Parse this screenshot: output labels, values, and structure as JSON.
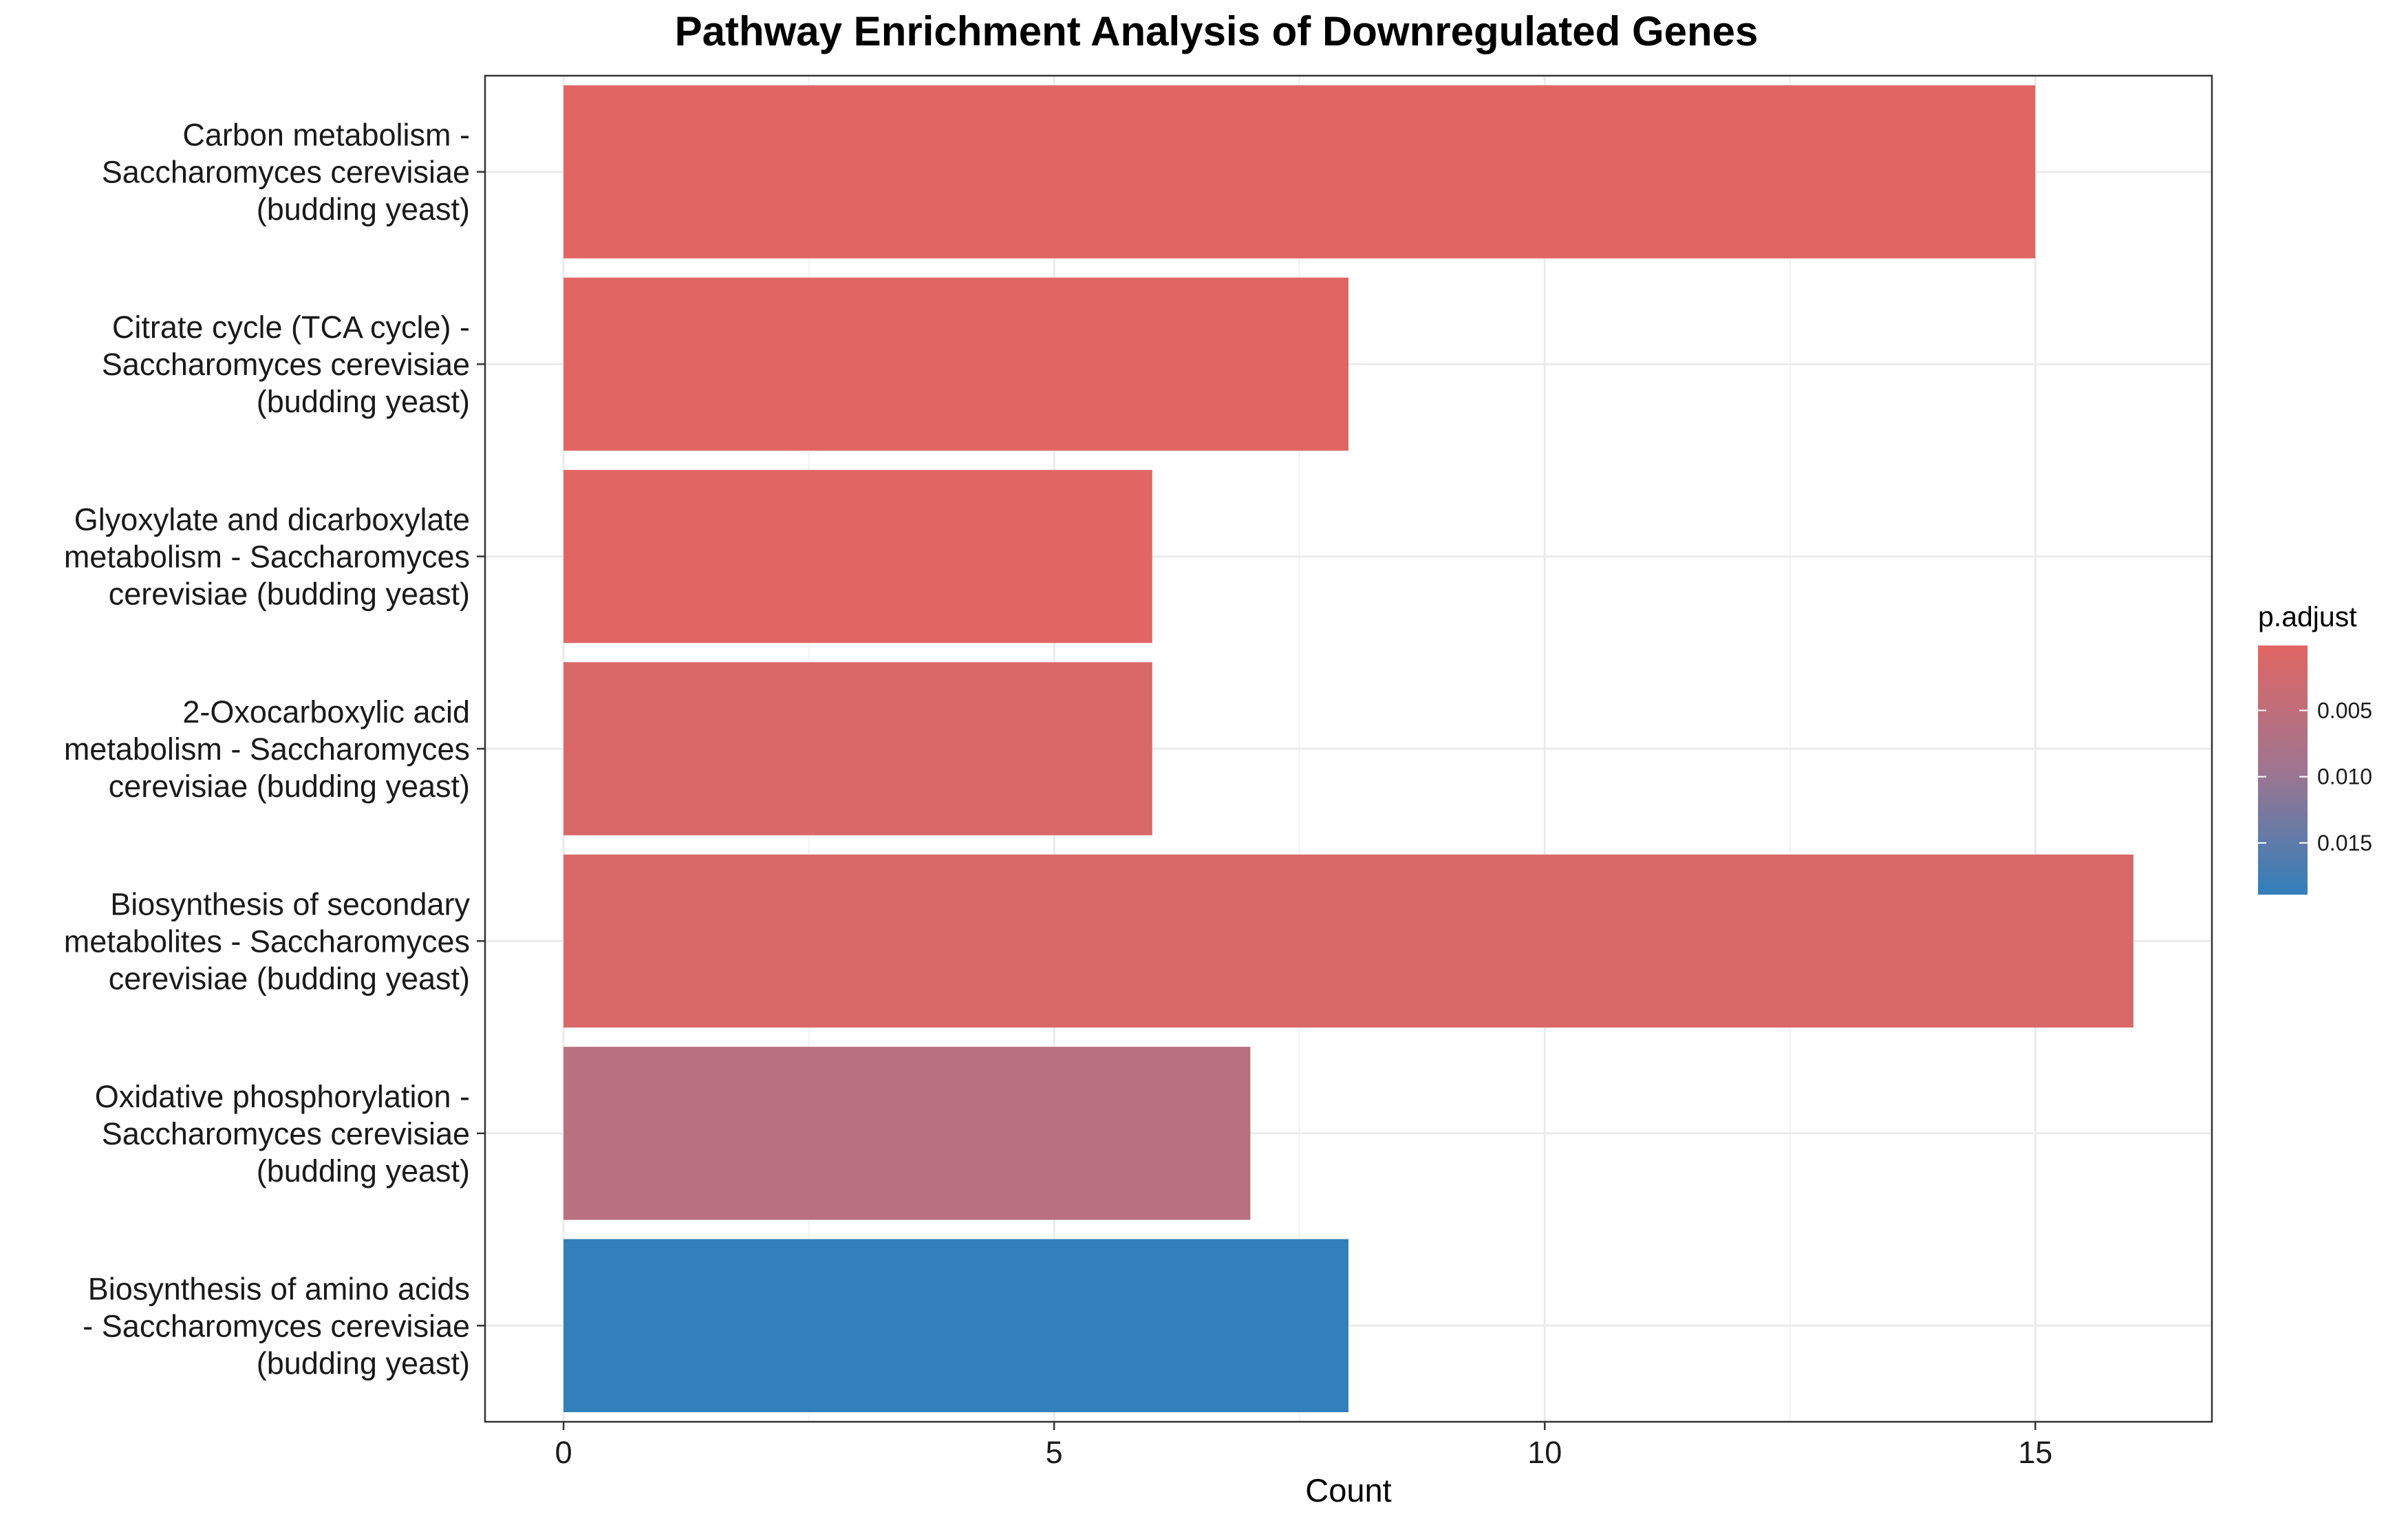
{
  "chart_data": {
    "type": "bar",
    "orientation": "horizontal",
    "title": "Pathway Enrichment Analysis of Downregulated Genes",
    "xlabel": "Count",
    "ylabel": "",
    "xlim": [
      -0.8,
      16.8
    ],
    "x_ticks": [
      0,
      5,
      10,
      15
    ],
    "grid": true,
    "legend_position": "right",
    "categories": [
      [
        "Carbon metabolism -",
        "Saccharomyces cerevisiae",
        "(budding yeast)"
      ],
      [
        "Citrate cycle (TCA cycle) -",
        "Saccharomyces cerevisiae",
        "(budding yeast)"
      ],
      [
        "Glyoxylate and dicarboxylate",
        "metabolism - Saccharomyces",
        "cerevisiae (budding yeast)"
      ],
      [
        "2-Oxocarboxylic acid",
        "metabolism - Saccharomyces",
        "cerevisiae (budding yeast)"
      ],
      [
        "Biosynthesis of secondary",
        "metabolites - Saccharomyces",
        "cerevisiae (budding yeast)"
      ],
      [
        "Oxidative phosphorylation -",
        "Saccharomyces cerevisiae",
        "(budding yeast)"
      ],
      [
        "Biosynthesis of amino acids",
        "- Saccharomyces cerevisiae",
        "(budding yeast)"
      ]
    ],
    "values": [
      15,
      8,
      6,
      6,
      16,
      7,
      8
    ],
    "p_adjust": [
      0.0001,
      0.0002,
      0.0003,
      0.0017,
      0.0021,
      0.0092,
      0.0189
    ],
    "bar_colors": [
      "#E16663",
      "#E16663",
      "#E16663",
      "#D96867",
      "#D96869",
      "#B9717F",
      "#317FBB"
    ],
    "legend": {
      "title": "p.adjust",
      "ticks": [
        "0.005",
        "0.010",
        "0.015"
      ],
      "tick_values": [
        0.005,
        0.01,
        0.015
      ],
      "range": [
        0.0001,
        0.0189
      ],
      "colors": [
        "#E16663",
        "#9F7590",
        "#317FBB"
      ]
    }
  }
}
